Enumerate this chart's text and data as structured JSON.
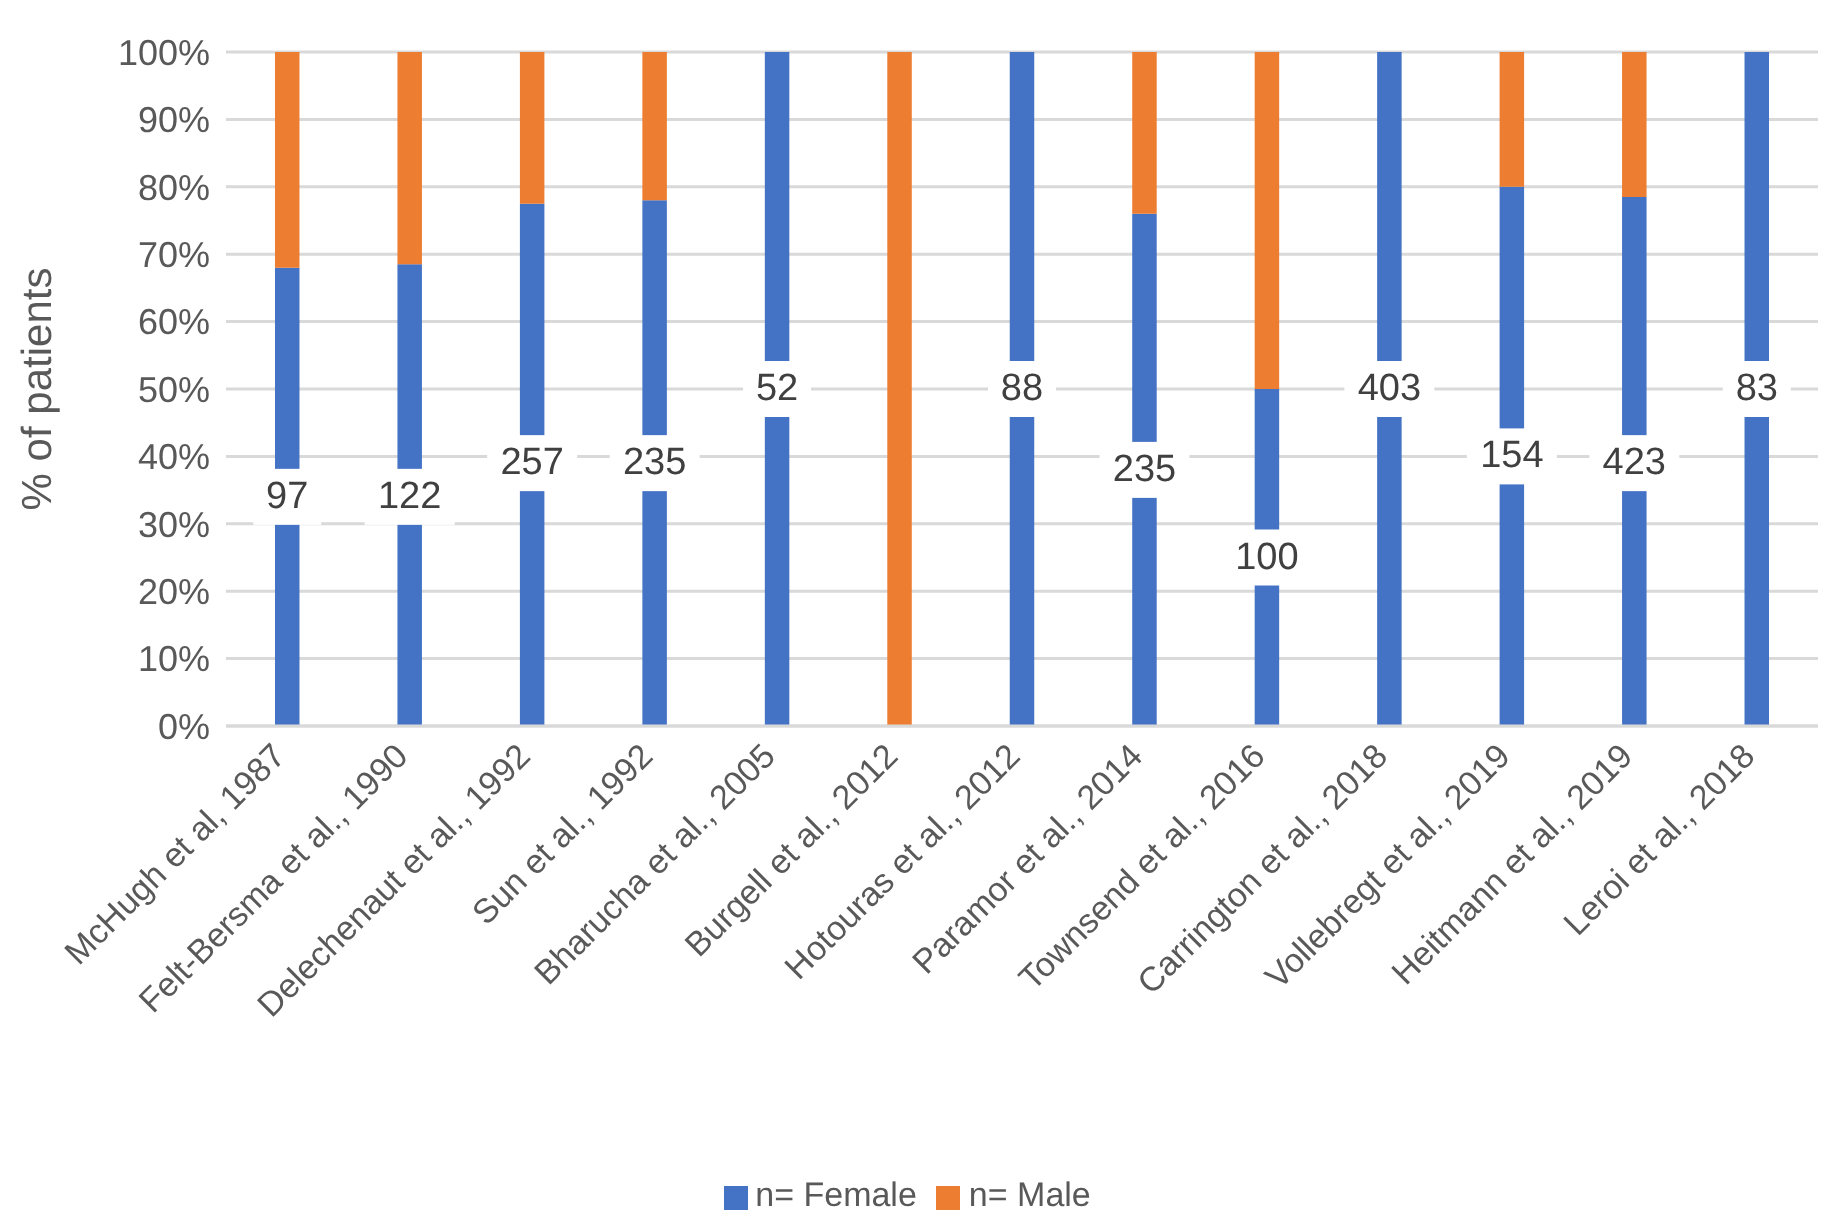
{
  "chart_data": {
    "type": "bar",
    "stacked": true,
    "ylabel": "% of patients",
    "categories": [
      "McHugh et al, 1987",
      "Felt-Bersma et al., 1990",
      "Delechenaut et al., 1992",
      "Sun et al., 1992",
      "Bharucha et al., 2005",
      "Burgell et al., 2012",
      "Hotouras et al., 2012",
      "Paramor et al., 2014",
      "Townsend et al., 2016",
      "Carrington et al., 2018",
      "Vollebregt et al., 2019",
      "Heitmann et al., 2019",
      "Leroi et al., 2018"
    ],
    "series": [
      {
        "name": "n= Female",
        "color": "#4472c4",
        "values": [
          68,
          68.5,
          77.5,
          78,
          100,
          0,
          100,
          76,
          50,
          100,
          80,
          78.5,
          100
        ]
      },
      {
        "name": "n= Male",
        "color": "#ed7d31",
        "values": [
          32,
          31.5,
          22.5,
          22,
          0,
          100,
          0,
          24,
          50,
          0,
          20,
          21.5,
          0
        ]
      }
    ],
    "annotations": [
      {
        "text": "97",
        "x": "McHugh et al, 1987",
        "y": 34
      },
      {
        "text": "122",
        "x": "Felt-Bersma et al., 1990",
        "y": 34
      },
      {
        "text": "257",
        "x": "Delechenaut et al., 1992",
        "y": 39
      },
      {
        "text": "235",
        "x": "Sun et al., 1992",
        "y": 39
      },
      {
        "text": "52",
        "x": "Bharucha et al., 2005",
        "y": 50
      },
      {
        "text": "88",
        "x": "Hotouras et al., 2012",
        "y": 50
      },
      {
        "text": "235",
        "x": "Paramor et al., 2014",
        "y": 38
      },
      {
        "text": "100",
        "x": "Townsend et al., 2016",
        "y": 25
      },
      {
        "text": "403",
        "x": "Carrington et al., 2018",
        "y": 50
      },
      {
        "text": "154",
        "x": "Vollebregt et al., 2019",
        "y": 40
      },
      {
        "text": "423",
        "x": "Heitmann et al., 2019",
        "y": 39
      },
      {
        "text": "83",
        "x": "Leroi et al., 2018",
        "y": 50
      }
    ],
    "ylim": [
      0,
      100
    ],
    "yticks": [
      {
        "value": 0,
        "label": "0%"
      },
      {
        "value": 10,
        "label": "10%"
      },
      {
        "value": 20,
        "label": "20%"
      },
      {
        "value": 30,
        "label": "30%"
      },
      {
        "value": 40,
        "label": "40%"
      },
      {
        "value": 50,
        "label": "50%"
      },
      {
        "value": 60,
        "label": "60%"
      },
      {
        "value": 70,
        "label": "70%"
      },
      {
        "value": 80,
        "label": "80%"
      },
      {
        "value": 90,
        "label": "90%"
      },
      {
        "value": 100,
        "label": "100%"
      }
    ],
    "grid": "y",
    "legend": "bottom"
  }
}
